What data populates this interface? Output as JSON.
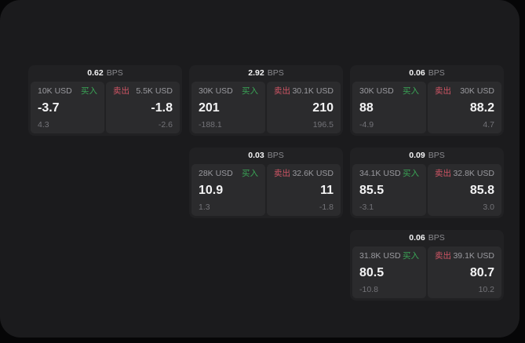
{
  "labels": {
    "buy": "买入",
    "sell": "卖出",
    "bps_unit": "BPS"
  },
  "colors": {
    "buy_green": "#3aa556",
    "sell_red": "#cf5565"
  },
  "cards": [
    {
      "col": 1,
      "row": 1,
      "bps": "0.62",
      "buy": {
        "amount": "10K USD",
        "value": "-3.7",
        "delta": "4.3"
      },
      "sell": {
        "amount": "5.5K USD",
        "value": "-1.8",
        "delta": "-2.6"
      }
    },
    {
      "col": 2,
      "row": 1,
      "bps": "2.92",
      "buy": {
        "amount": "30K USD",
        "value": "201",
        "delta": "-188.1"
      },
      "sell": {
        "amount": "30.1K USD",
        "value": "210",
        "delta": "196.5"
      }
    },
    {
      "col": 3,
      "row": 1,
      "bps": "0.06",
      "buy": {
        "amount": "30K USD",
        "value": "88",
        "delta": "-4.9"
      },
      "sell": {
        "amount": "30K USD",
        "value": "88.2",
        "delta": "4.7"
      }
    },
    {
      "col": 2,
      "row": 2,
      "bps": "0.03",
      "buy": {
        "amount": "28K USD",
        "value": "10.9",
        "delta": "1.3"
      },
      "sell": {
        "amount": "32.6K USD",
        "value": "11",
        "delta": "-1.8"
      }
    },
    {
      "col": 3,
      "row": 2,
      "bps": "0.09",
      "buy": {
        "amount": "34.1K USD",
        "value": "85.5",
        "delta": "-3.1"
      },
      "sell": {
        "amount": "32.8K USD",
        "value": "85.8",
        "delta": "3.0"
      }
    },
    {
      "col": 3,
      "row": 3,
      "bps": "0.06",
      "buy": {
        "amount": "31.8K USD",
        "value": "80.5",
        "delta": "-10.8"
      },
      "sell": {
        "amount": "39.1K USD",
        "value": "80.7",
        "delta": "10.2"
      }
    }
  ]
}
